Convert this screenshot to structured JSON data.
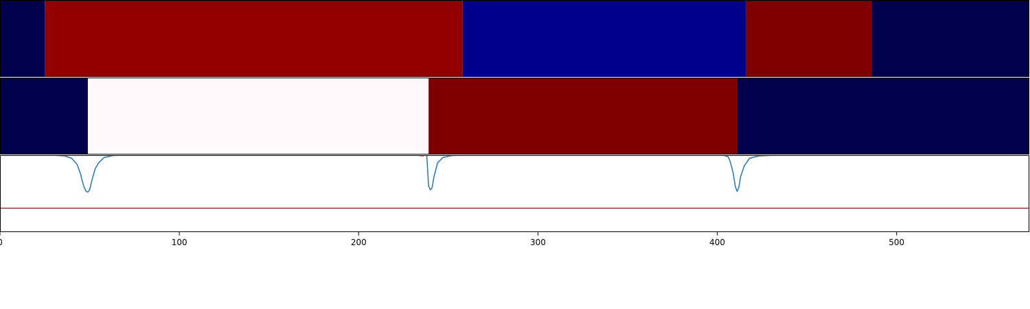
{
  "chart_data": {
    "type": "heatmap",
    "title": "",
    "xlabel": "",
    "ylabel": "",
    "xlim": [
      0,
      574
    ],
    "xticks": [
      0,
      100,
      200,
      300,
      400,
      500
    ],
    "grid": false,
    "panels": [
      {
        "type": "heatmap",
        "segments": [
          {
            "start": 0,
            "end": 25,
            "color": "#00004d"
          },
          {
            "start": 25,
            "end": 258,
            "color": "#920000"
          },
          {
            "start": 258,
            "end": 416,
            "color": "#00008a"
          },
          {
            "start": 416,
            "end": 486,
            "color": "#7f0000"
          },
          {
            "start": 486,
            "end": 574,
            "color": "#00004d"
          }
        ]
      },
      {
        "type": "heatmap",
        "segments": [
          {
            "start": 0,
            "end": 49,
            "color": "#00004d"
          },
          {
            "start": 49,
            "end": 239,
            "color": "#fff9fb"
          },
          {
            "start": 239,
            "end": 411,
            "color": "#7f0000"
          },
          {
            "start": 411,
            "end": 574,
            "color": "#00004d"
          }
        ]
      },
      {
        "type": "line",
        "ylim": [
          0,
          1
        ],
        "threshold": {
          "value": 0.31,
          "color": "#e41a1c"
        },
        "series": [
          {
            "color": "#1f77b4",
            "x": [
              0,
              30,
              36,
              40,
              43,
              45,
              46,
              47,
              48,
              49,
              50,
              51,
              53,
              55,
              58,
              63,
              70,
              232,
              236,
              237,
              238,
              239,
              240,
              241,
              242,
              244,
              247,
              252,
              260,
              400,
              404,
              406,
              407,
              408,
              409,
              410,
              411,
              412,
              413,
              415,
              418,
              423,
              432,
              574
            ],
            "y": [
              1.0,
              0.999,
              0.99,
              0.96,
              0.88,
              0.75,
              0.65,
              0.58,
              0.53,
              0.52,
              0.55,
              0.65,
              0.82,
              0.9,
              0.97,
              0.995,
              1.0,
              1.0,
              0.99,
              1.02,
              0.99,
              0.6,
              0.55,
              0.58,
              0.72,
              0.9,
              0.97,
              0.995,
              1.0,
              1.0,
              0.995,
              0.98,
              0.93,
              0.85,
              0.75,
              0.6,
              0.53,
              0.58,
              0.72,
              0.86,
              0.96,
              0.99,
              1.0,
              1.0
            ]
          }
        ]
      }
    ]
  }
}
